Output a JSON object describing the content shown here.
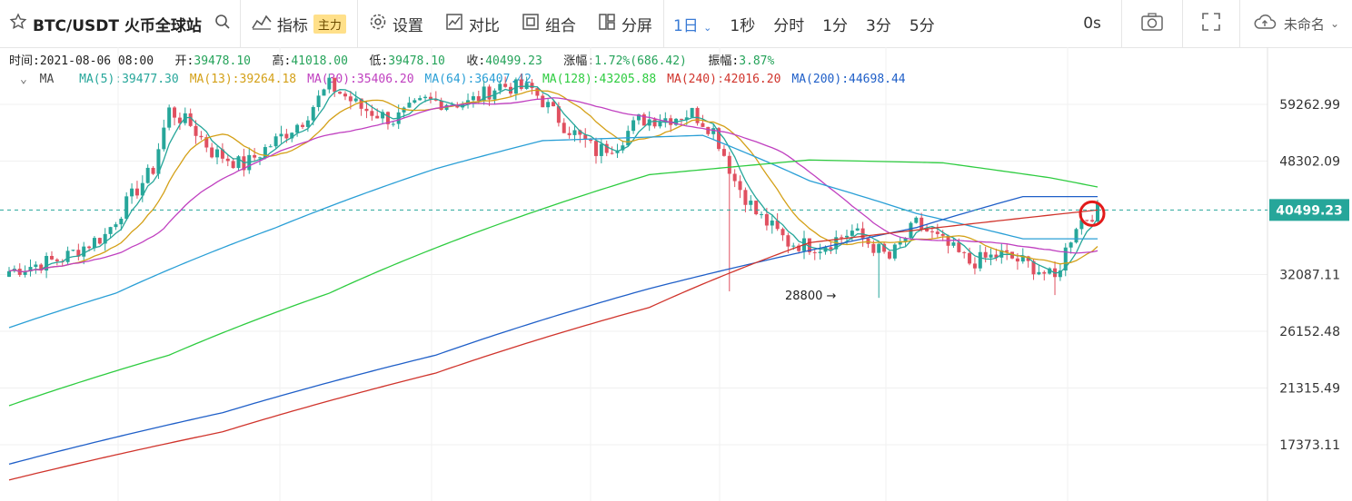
{
  "toolbar": {
    "symbol": "BTC/USDT 火币全球站",
    "indicator_label": "指标",
    "indicator_badge": "主力",
    "settings_label": "设置",
    "compare_label": "对比",
    "combo_label": "组合",
    "split_label": "分屏",
    "intervals": {
      "day": "1日",
      "sec": "1秒",
      "tick": "分时",
      "m1": "1分",
      "m3": "3分",
      "m5": "5分"
    },
    "countdown": "0s",
    "layout_name": "未命名"
  },
  "info": {
    "time_label": "时间:",
    "time": "2021-08-06 08:00",
    "open_label": "开:",
    "open": "39478.10",
    "high_label": "高:",
    "high": "41018.00",
    "low_label": "低:",
    "low": "39478.10",
    "close_label": "收:",
    "close": "40499.23",
    "change_label": "涨幅:",
    "change": "1.72%(686.42)",
    "amp_label": "振幅:",
    "amp": "3.87%"
  },
  "ma_bar": {
    "title": "MA",
    "items": [
      {
        "label": "MA(5):39477.30",
        "color": "#26a69a"
      },
      {
        "label": "MA(13):39264.18",
        "color": "#d4a017"
      },
      {
        "label": "MA(30):35406.20",
        "color": "#c040c0"
      },
      {
        "label": "MA(64):36407.42",
        "color": "#2a9fd6"
      },
      {
        "label": "MA(128):43205.88",
        "color": "#2ecc40"
      },
      {
        "label": "MA(240):42016.20",
        "color": "#d0342c"
      },
      {
        "label": "MA(200):44698.44",
        "color": "#1f5fc8"
      }
    ]
  },
  "chart_data": {
    "type": "candlestick",
    "y_ticks": [
      "59262.99",
      "48302.09",
      "32087.11",
      "26152.48",
      "21315.49",
      "17373.11"
    ],
    "current_price": "40499.23",
    "annotation": "28800 →",
    "colors": {
      "up": "#26a69a",
      "down": "#e05060"
    }
  }
}
